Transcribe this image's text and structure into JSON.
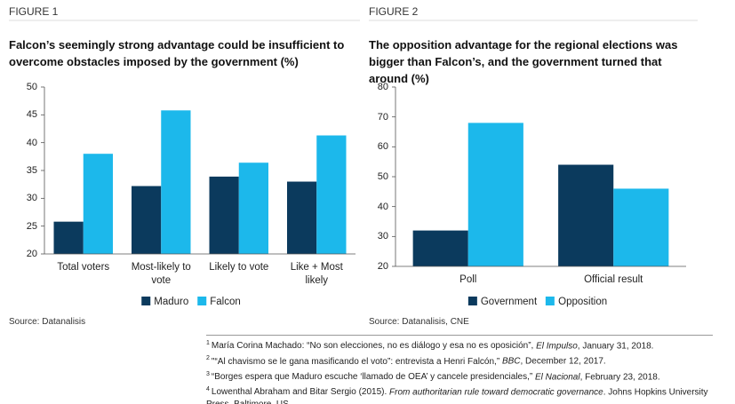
{
  "chart_data": [
    {
      "type": "bar",
      "figure_label": "FIGURE 1",
      "title": "Falcon’s seemingly strong advantage could be insufficient to overcome obstacles imposed by the government (%)",
      "categories": [
        "Total voters",
        "Most-likely to vote",
        "Likely to vote",
        "Like + Most likely"
      ],
      "series": [
        {
          "name": "Maduro",
          "color": "#0b3a5d",
          "values": [
            25.8,
            32.2,
            33.9,
            33.0
          ]
        },
        {
          "name": "Falcon",
          "color": "#1cb8eb",
          "values": [
            38.0,
            45.8,
            36.4,
            41.3
          ]
        }
      ],
      "ylim": [
        20,
        50
      ],
      "yticks": [
        20,
        25,
        30,
        35,
        40,
        45,
        50
      ],
      "grid": false,
      "legend": "bottom",
      "source": "Source: Datanalisis"
    },
    {
      "type": "bar",
      "figure_label": "FIGURE 2",
      "title": "The opposition advantage for the regional elections was bigger than Falcon’s, and the government turned that around (%)",
      "categories": [
        "Poll",
        "Official result"
      ],
      "series": [
        {
          "name": "Government",
          "color": "#0b3a5d",
          "values": [
            32,
            54
          ]
        },
        {
          "name": "Opposition",
          "color": "#1cb8eb",
          "values": [
            68,
            46
          ]
        }
      ],
      "ylim": [
        20,
        80
      ],
      "yticks": [
        20,
        30,
        40,
        50,
        60,
        70,
        80
      ],
      "grid": false,
      "legend": "bottom",
      "source": "Source: Datanalisis, CNE"
    }
  ],
  "footnotes": [
    {
      "number": "1",
      "text": "María Corina Machado: “No son elecciones, no es diálogo y esa no es oposición”, ",
      "italic": "El Impulso",
      "after": ", January 31, 2018."
    },
    {
      "number": "2",
      "text": "\"“Al chavismo se le gana masificando el voto”: entrevista a Henri Falcón,” ",
      "italic": "BBC",
      "after": ", December 12, 2017."
    },
    {
      "number": "3",
      "text": "“Borges espera que Maduro escuche ‘llamado de OEA’ y cancele presidenciales,” ",
      "italic": "El Nacional",
      "after": ", February 23, 2018."
    },
    {
      "number": "4",
      "text": "Lowenthal Abraham and Bitar Sergio (2015). ",
      "italic": "From authoritarian rule toward democratic governance",
      "after": ". Johns Hopkins University Press, Baltimore, US."
    }
  ]
}
